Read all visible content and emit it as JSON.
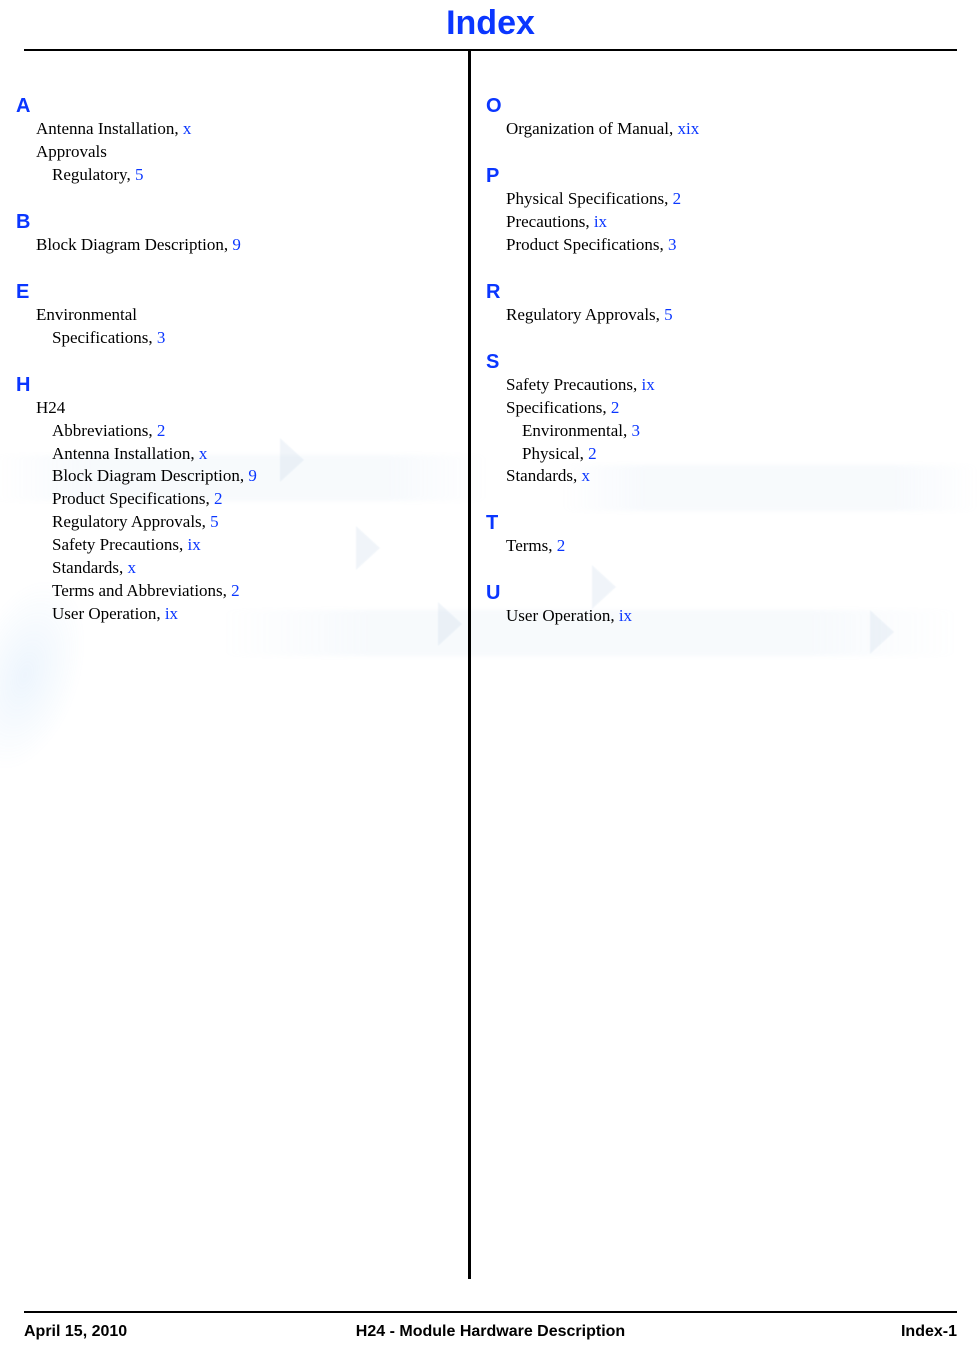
{
  "title": "Index",
  "footer": {
    "date": "April 15, 2010",
    "doc": "H24 - Module Hardware Description",
    "page": "Index-1"
  },
  "columns": {
    "left": [
      {
        "type": "letter",
        "text": "A",
        "first": true
      },
      {
        "type": "entry",
        "level": 1,
        "label": "Antenna Installation",
        "page": "x"
      },
      {
        "type": "entry",
        "level": 1,
        "label": "Approvals"
      },
      {
        "type": "entry",
        "level": 2,
        "label": "Regulatory",
        "page": "5"
      },
      {
        "type": "letter",
        "text": "B"
      },
      {
        "type": "entry",
        "level": 1,
        "label": "Block Diagram Description",
        "page": "9"
      },
      {
        "type": "letter",
        "text": "E"
      },
      {
        "type": "entry",
        "level": 1,
        "label": "Environmental"
      },
      {
        "type": "entry",
        "level": 2,
        "label": "Specifications",
        "page": "3"
      },
      {
        "type": "letter",
        "text": "H"
      },
      {
        "type": "entry",
        "level": 1,
        "label": "H24"
      },
      {
        "type": "entry",
        "level": 2,
        "label": "Abbreviations",
        "page": "2"
      },
      {
        "type": "entry",
        "level": 2,
        "label": "Antenna Installation",
        "page": "x"
      },
      {
        "type": "entry",
        "level": 2,
        "label": "Block Diagram Description",
        "page": "9"
      },
      {
        "type": "entry",
        "level": 2,
        "label": "Product Specifications",
        "page": "2"
      },
      {
        "type": "entry",
        "level": 2,
        "label": "Regulatory Approvals",
        "page": "5"
      },
      {
        "type": "entry",
        "level": 2,
        "label": "Safety Precautions",
        "page": "ix"
      },
      {
        "type": "entry",
        "level": 2,
        "label": "Standards",
        "page": "x"
      },
      {
        "type": "entry",
        "level": 2,
        "label": "Terms and Abbreviations",
        "page": "2"
      },
      {
        "type": "entry",
        "level": 2,
        "label": "User Operation",
        "page": "ix"
      }
    ],
    "right": [
      {
        "type": "letter",
        "text": "O",
        "first": true
      },
      {
        "type": "entry",
        "level": 1,
        "label": "Organization of Manual",
        "page": "xix"
      },
      {
        "type": "letter",
        "text": "P"
      },
      {
        "type": "entry",
        "level": 1,
        "label": "Physical Specifications",
        "page": "2"
      },
      {
        "type": "entry",
        "level": 1,
        "label": "Precautions",
        "page": "ix"
      },
      {
        "type": "entry",
        "level": 1,
        "label": "Product Specifications",
        "page": "3"
      },
      {
        "type": "letter",
        "text": "R"
      },
      {
        "type": "entry",
        "level": 1,
        "label": "Regulatory Approvals",
        "page": "5"
      },
      {
        "type": "letter",
        "text": "S"
      },
      {
        "type": "entry",
        "level": 1,
        "label": "Safety Precautions",
        "page": "ix"
      },
      {
        "type": "entry",
        "level": 1,
        "label": "Specifications",
        "page": "2"
      },
      {
        "type": "entry",
        "level": 2,
        "label": "Environmental",
        "page": "3"
      },
      {
        "type": "entry",
        "level": 2,
        "label": "Physical",
        "page": "2"
      },
      {
        "type": "entry",
        "level": 1,
        "label": "Standards",
        "page": "x"
      },
      {
        "type": "letter",
        "text": "T"
      },
      {
        "type": "entry",
        "level": 1,
        "label": "Terms",
        "page": "2"
      },
      {
        "type": "letter",
        "text": "U"
      },
      {
        "type": "entry",
        "level": 1,
        "label": "User Operation",
        "page": "ix"
      }
    ]
  }
}
